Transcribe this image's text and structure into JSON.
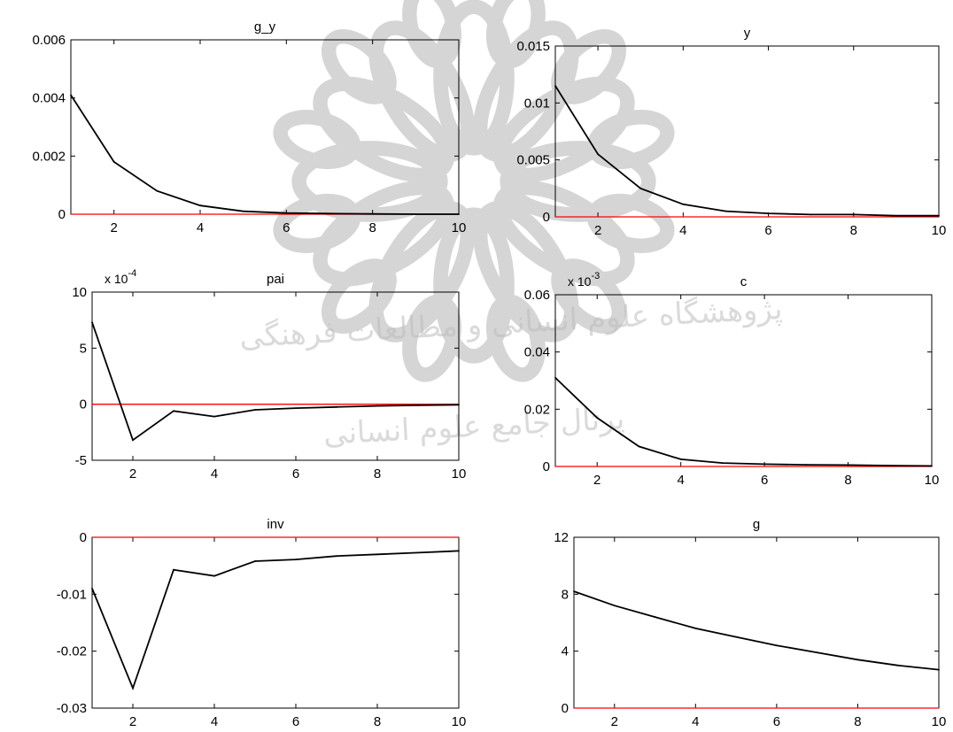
{
  "watermark": {
    "line_1": "پژوهشگاه علوم انسانی و مطالعات فرهنگی",
    "line_2": "پرتال جامع علوم انسانی"
  },
  "colors": {
    "impulse_line": "#000000",
    "zero_line": "#ff0000",
    "axes": "#000000"
  },
  "chart_data": [
    {
      "type": "line",
      "title": "g_y",
      "x": [
        1,
        2,
        3,
        4,
        5,
        6,
        7,
        8,
        9,
        10
      ],
      "series": [
        {
          "values": [
            0.0041,
            0.0018,
            0.0008,
            0.0003,
            0.0001,
            4e-05,
            2e-05,
            1e-05,
            0.0,
            0.0
          ]
        }
      ],
      "xlim": [
        1,
        10
      ],
      "ylim": [
        0,
        0.006
      ],
      "xticks": [
        2,
        4,
        6,
        8,
        10
      ],
      "yticks": [
        0,
        0.002,
        0.004,
        0.006
      ],
      "xtick_labels": [
        "2",
        "4",
        "6",
        "8",
        "10"
      ],
      "ytick_labels": [
        "0",
        "0.002",
        "0.004",
        "0.006"
      ],
      "exponent_label": "",
      "zero_line": 0
    },
    {
      "type": "line",
      "title": "y",
      "x": [
        1,
        2,
        3,
        4,
        5,
        6,
        7,
        8,
        9,
        10
      ],
      "series": [
        {
          "values": [
            0.0115,
            0.0055,
            0.0025,
            0.0011,
            0.0005,
            0.0003,
            0.0002,
            0.0002,
            0.0001,
            0.0001
          ]
        }
      ],
      "xlim": [
        1,
        10
      ],
      "ylim": [
        0,
        0.015
      ],
      "xticks": [
        2,
        4,
        6,
        8,
        10
      ],
      "yticks": [
        0,
        0.005,
        0.01,
        0.015
      ],
      "xtick_labels": [
        "2",
        "4",
        "6",
        "8",
        "10"
      ],
      "ytick_labels": [
        "0",
        "0.005",
        "0.01",
        "0.015"
      ],
      "exponent_label": "",
      "zero_line": 0
    },
    {
      "type": "line",
      "title": "pai",
      "x": [
        1,
        2,
        3,
        4,
        5,
        6,
        7,
        8,
        9,
        10
      ],
      "series": [
        {
          "values": [
            7.3,
            -3.2,
            -0.6,
            -1.1,
            -0.5,
            -0.35,
            -0.25,
            -0.15,
            -0.1,
            -0.05
          ]
        }
      ],
      "xlim": [
        1,
        10
      ],
      "ylim": [
        -5,
        10
      ],
      "xticks": [
        2,
        4,
        6,
        8,
        10
      ],
      "yticks": [
        -5,
        0,
        5,
        10
      ],
      "xtick_labels": [
        "2",
        "4",
        "6",
        "8",
        "10"
      ],
      "ytick_labels": [
        "-5",
        "0",
        "5",
        "10"
      ],
      "exponent_label": "x 10",
      "exponent_value": "-4",
      "zero_line": 0
    },
    {
      "type": "line",
      "title": "c",
      "x": [
        1,
        2,
        3,
        4,
        5,
        6,
        7,
        8,
        9,
        10
      ],
      "series": [
        {
          "values": [
            0.031,
            0.017,
            0.007,
            0.0025,
            0.0012,
            0.0008,
            0.0006,
            0.0005,
            0.0003,
            0.0002
          ]
        }
      ],
      "xlim": [
        1,
        10
      ],
      "ylim": [
        0,
        0.06
      ],
      "xticks": [
        2,
        4,
        6,
        8,
        10
      ],
      "yticks": [
        0,
        0.02,
        0.04,
        0.06
      ],
      "xtick_labels": [
        "2",
        "4",
        "6",
        "8",
        "10"
      ],
      "ytick_labels": [
        "0",
        "0.02",
        "0.04",
        "0.06"
      ],
      "exponent_label": "x 10",
      "exponent_value": "-3",
      "zero_line": 0
    },
    {
      "type": "line",
      "title": "inv",
      "x": [
        1,
        2,
        3,
        4,
        5,
        6,
        7,
        8,
        9,
        10
      ],
      "series": [
        {
          "values": [
            -0.009,
            -0.0265,
            -0.0057,
            -0.0068,
            -0.0042,
            -0.0039,
            -0.0033,
            -0.003,
            -0.0027,
            -0.0024
          ]
        }
      ],
      "xlim": [
        1,
        10
      ],
      "ylim": [
        -0.03,
        0
      ],
      "xticks": [
        2,
        4,
        6,
        8,
        10
      ],
      "yticks": [
        -0.03,
        -0.02,
        -0.01,
        0
      ],
      "xtick_labels": [
        "2",
        "4",
        "6",
        "8",
        "10"
      ],
      "ytick_labels": [
        "-0.03",
        "-0.02",
        "-0.01",
        "0"
      ],
      "exponent_label": "",
      "zero_line": 0
    },
    {
      "type": "line",
      "title": "g",
      "x": [
        1,
        2,
        3,
        4,
        5,
        6,
        7,
        8,
        9,
        10
      ],
      "series": [
        {
          "values": [
            8.2,
            7.2,
            6.4,
            5.6,
            5.0,
            4.4,
            3.9,
            3.4,
            3.0,
            2.7
          ]
        }
      ],
      "xlim": [
        1,
        10
      ],
      "ylim": [
        0,
        12
      ],
      "xticks": [
        2,
        4,
        6,
        8,
        10
      ],
      "yticks": [
        0,
        4,
        8,
        12
      ],
      "xtick_labels": [
        "2",
        "4",
        "6",
        "8",
        "10"
      ],
      "ytick_labels": [
        "0",
        "4",
        "8",
        "12"
      ],
      "exponent_label": "",
      "zero_line": 0
    }
  ]
}
